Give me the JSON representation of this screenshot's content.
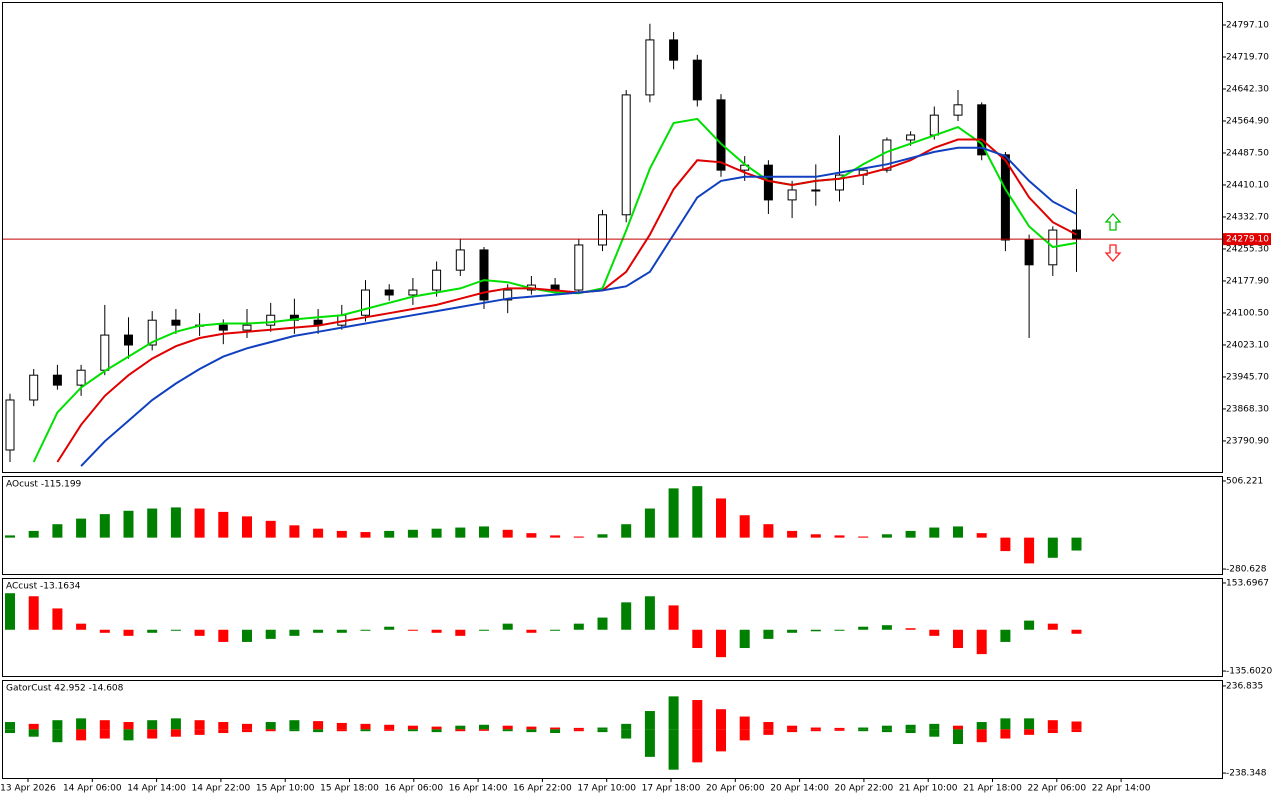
{
  "chart_data": [
    {
      "type": "candlestick",
      "ohlc": [
        [
          23769,
          23905,
          23740,
          23890
        ],
        [
          23890,
          23965,
          23875,
          23950
        ],
        [
          23950,
          23975,
          23915,
          23926
        ],
        [
          23926,
          23975,
          23900,
          23962
        ],
        [
          23962,
          24120,
          23950,
          24047
        ],
        [
          24047,
          24090,
          23990,
          24023
        ],
        [
          24023,
          24105,
          24010,
          24083
        ],
        [
          24083,
          24110,
          24050,
          24071
        ],
        [
          24071,
          24100,
          24045,
          24071
        ],
        [
          24071,
          24085,
          24025,
          24059
        ],
        [
          24059,
          24110,
          24040,
          24071
        ],
        [
          24071,
          24125,
          24055,
          24095
        ],
        [
          24095,
          24135,
          24050,
          24083
        ],
        [
          24083,
          24110,
          24050,
          24071
        ],
        [
          24071,
          24120,
          24060,
          24095
        ],
        [
          24095,
          24180,
          24080,
          24156
        ],
        [
          24156,
          24170,
          24130,
          24144
        ],
        [
          24144,
          24185,
          24120,
          24156
        ],
        [
          24156,
          24225,
          24140,
          24204
        ],
        [
          24204,
          24280,
          24190,
          24253
        ],
        [
          24253,
          24260,
          24110,
          24132
        ],
        [
          24132,
          24170,
          24100,
          24156
        ],
        [
          24156,
          24190,
          24145,
          24168
        ],
        [
          24168,
          24185,
          24150,
          24156
        ],
        [
          24156,
          24280,
          24150,
          24265
        ],
        [
          24265,
          24350,
          24250,
          24338
        ],
        [
          24338,
          24640,
          24320,
          24628
        ],
        [
          24628,
          24800,
          24610,
          24761
        ],
        [
          24761,
          24780,
          24690,
          24712
        ],
        [
          24712,
          24725,
          24600,
          24616
        ],
        [
          24616,
          24630,
          24430,
          24446
        ],
        [
          24446,
          24480,
          24420,
          24458
        ],
        [
          24458,
          24470,
          24340,
          24374
        ],
        [
          24374,
          24420,
          24330,
          24398
        ],
        [
          24398,
          24460,
          24360,
          24398
        ],
        [
          24398,
          24530,
          24370,
          24434
        ],
        [
          24434,
          24450,
          24410,
          24446
        ],
        [
          24446,
          24525,
          24440,
          24519
        ],
        [
          24519,
          24540,
          24505,
          24531
        ],
        [
          24531,
          24600,
          24520,
          24579
        ],
        [
          24579,
          24640,
          24565,
          24604
        ],
        [
          24604,
          24610,
          24470,
          24483
        ],
        [
          24483,
          24490,
          24250,
          24277
        ],
        [
          24277,
          24290,
          24040,
          24217
        ],
        [
          24217,
          24310,
          24190,
          24301
        ],
        [
          24301,
          24400,
          24200,
          24279
        ]
      ],
      "series": [
        {
          "color": "#00e000",
          "values": [
            null,
            23740,
            23860,
            23920,
            23960,
            23995,
            24030,
            24055,
            24070,
            24075,
            24075,
            24078,
            24085,
            24090,
            24095,
            24110,
            24125,
            24140,
            24150,
            24160,
            24180,
            24175,
            24160,
            24150,
            24148,
            24160,
            24300,
            24450,
            24560,
            24570,
            24510,
            24460,
            24420,
            24410,
            24420,
            24425,
            24460,
            24490,
            24510,
            24530,
            24550,
            24510,
            24400,
            24310,
            24260,
            24270
          ]
        },
        {
          "color": "#e00000",
          "values": [
            null,
            null,
            23740,
            23830,
            23900,
            23950,
            23990,
            24020,
            24040,
            24050,
            24055,
            24060,
            24065,
            24070,
            24080,
            24090,
            24100,
            24110,
            24120,
            24135,
            24150,
            24160,
            24160,
            24155,
            24150,
            24155,
            24200,
            24290,
            24400,
            24470,
            24465,
            24440,
            24420,
            24410,
            24420,
            24425,
            24435,
            24450,
            24470,
            24500,
            24520,
            24520,
            24470,
            24380,
            24320,
            24290
          ]
        },
        {
          "color": "#1040c0",
          "values": [
            null,
            null,
            null,
            23730,
            23790,
            23840,
            23890,
            23930,
            23965,
            23995,
            24015,
            24030,
            24045,
            24055,
            24065,
            24075,
            24085,
            24095,
            24105,
            24115,
            24125,
            24135,
            24140,
            24145,
            24150,
            24155,
            24165,
            24200,
            24290,
            24380,
            24420,
            24430,
            24430,
            24430,
            24430,
            24440,
            24450,
            24460,
            24475,
            24490,
            24500,
            24500,
            24480,
            24420,
            24370,
            24340
          ]
        }
      ],
      "current_price": {
        "value": 24279.1,
        "label": "24279.10"
      },
      "ylim": [
        23715.8,
        24850.3
      ],
      "yticks": [
        {
          "value": 24797.1,
          "label": "24797.10"
        },
        {
          "value": 24719.7,
          "label": "24719.70"
        },
        {
          "value": 24642.3,
          "label": "24642.30"
        },
        {
          "value": 24564.9,
          "label": "24564.90"
        },
        {
          "value": 24487.5,
          "label": "24487.50"
        },
        {
          "value": 24410.1,
          "label": "24410.10"
        },
        {
          "value": 24332.7,
          "label": "24332.70"
        },
        {
          "value": 24255.3,
          "label": "24255.30"
        },
        {
          "value": 24177.9,
          "label": "24177.90"
        },
        {
          "value": 24100.5,
          "label": "24100.50"
        },
        {
          "value": 24023.1,
          "label": "24023.10"
        },
        {
          "value": 23945.7,
          "label": "23945.70"
        },
        {
          "value": 23868.3,
          "label": "23868.30"
        },
        {
          "value": 23790.9,
          "label": "23790.90"
        }
      ]
    },
    {
      "type": "histogram",
      "title": "AOcust -115.199",
      "up_color": "#008000",
      "down_color": "#ff0000",
      "values": [
        20,
        60,
        120,
        170,
        210,
        240,
        260,
        270,
        260,
        230,
        190,
        150,
        110,
        80,
        60,
        50,
        60,
        70,
        80,
        90,
        100,
        70,
        40,
        20,
        10,
        30,
        120,
        260,
        440,
        460,
        350,
        200,
        120,
        60,
        30,
        20,
        10,
        30,
        60,
        90,
        100,
        40,
        -120,
        -230,
        -180,
        -115.199
      ],
      "ylim": [
        -324.8,
        541.6
      ],
      "yticks": [
        506.221,
        -280.628
      ]
    },
    {
      "type": "histogram",
      "title": "ACcust -13.1634",
      "up_color": "#008000",
      "down_color": "#ff0000",
      "values": [
        120,
        110,
        70,
        20,
        -10,
        -20,
        -10,
        0,
        -20,
        -40,
        -40,
        -30,
        -20,
        -10,
        -10,
        0,
        10,
        0,
        -10,
        -20,
        0,
        20,
        -10,
        0,
        20,
        40,
        90,
        110,
        80,
        -60,
        -90,
        -60,
        -30,
        -10,
        -5,
        0,
        10,
        15,
        5,
        -20,
        -60,
        -80,
        -40,
        30,
        20,
        -13.1634
      ],
      "ylim": [
        -151.9,
        166.7
      ],
      "yticks": [
        153.6967,
        {
          "value": -135.602,
          "label": "-135.6020"
        }
      ]
    },
    {
      "type": "gator",
      "title": "GatorCust 42.952 -14.608",
      "up_color": "#008000",
      "down_color": "#ff0000",
      "upper": [
        40,
        30,
        50,
        60,
        50,
        40,
        50,
        60,
        50,
        40,
        30,
        40,
        50,
        45,
        35,
        30,
        25,
        20,
        15,
        20,
        25,
        20,
        15,
        10,
        8,
        10,
        30,
        100,
        180,
        160,
        110,
        70,
        40,
        20,
        10,
        8,
        10,
        20,
        25,
        30,
        20,
        40,
        60,
        60,
        50,
        42.952
      ],
      "lower": [
        -20,
        -40,
        -70,
        -60,
        -50,
        -60,
        -50,
        -40,
        -30,
        -20,
        -15,
        -10,
        -10,
        -15,
        -10,
        -10,
        -8,
        -10,
        -15,
        -10,
        -8,
        -10,
        -15,
        -20,
        -10,
        -15,
        -50,
        -150,
        -220,
        -180,
        -120,
        -60,
        -30,
        -15,
        -10,
        -8,
        -10,
        -15,
        -20,
        -40,
        -80,
        -70,
        -50,
        -30,
        -20,
        -14.608
      ],
      "ylim": [
        -265.3,
        263.8
      ],
      "yticks": [
        236.835,
        -238.348
      ],
      "time_labels": [
        "13 Apr 2026",
        "14 Apr 06:00",
        "14 Apr 14:00",
        "14 Apr 22:00",
        "15 Apr 10:00",
        "15 Apr 18:00",
        "16 Apr 06:00",
        "16 Apr 14:00",
        "16 Apr 22:00",
        "17 Apr 10:00",
        "17 Apr 18:00",
        "20 Apr 06:00",
        "20 Apr 14:00",
        "20 Apr 22:00",
        "21 Apr 10:00",
        "21 Apr 18:00",
        "22 Apr 06:00",
        "22 Apr 14:00"
      ]
    }
  ]
}
